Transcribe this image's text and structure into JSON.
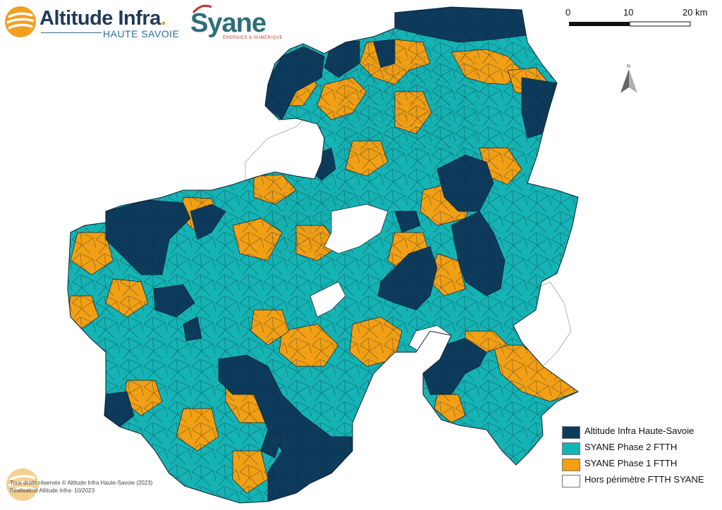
{
  "logos": {
    "altitude": {
      "name": "Altitude Infra",
      "dot": ".",
      "subtitle": "HAUTE SAVOIE"
    },
    "syane": {
      "name": "Syane",
      "subtitle": "ÉNERGIES & NUMÉRIQUE"
    }
  },
  "scalebar": {
    "ticks": [
      "0",
      "10",
      "20 km"
    ]
  },
  "north_arrow": {
    "label": "N"
  },
  "legend": {
    "items": [
      {
        "label": "Altitude Infra Haute-Savoie",
        "color": "#0d3b5c"
      },
      {
        "label": "SYANE Phase 2 FTTH",
        "color": "#15b3b3"
      },
      {
        "label": "SYANE Phase 1 FTTH",
        "color": "#f19f14"
      },
      {
        "label": "Hors périmètre FTTH SYANE",
        "color": "#ffffff"
      }
    ]
  },
  "footer": {
    "line1": "Tous droits réservés © Altitude Infra Haute-Savoie (2023)",
    "line2": "Réalisation Altitude Infra- 10/2023"
  }
}
